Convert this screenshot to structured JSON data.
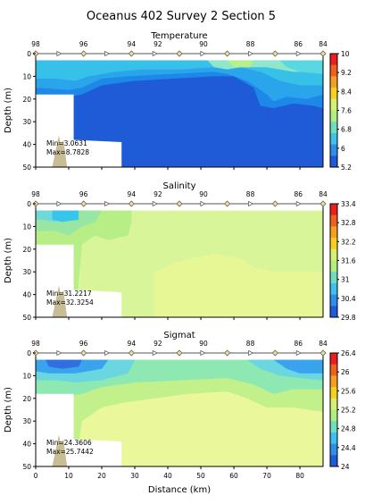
{
  "title": "Oceanus 402 Survey 2 Section 5",
  "xlabel": "Distance (km)",
  "ylabel": "Depth (m)",
  "station_labels": [
    "98",
    "96",
    "94",
    "92",
    "90",
    "88",
    "86",
    "84"
  ],
  "chart_data": [
    {
      "type": "heatmap",
      "title": "Temperature",
      "min_text": "Min=3.0631",
      "max_text": "Max=8.7828",
      "colorbar": {
        "ticks": [
          "10",
          "9.2",
          "8.4",
          "7.6",
          "6.8",
          "6",
          "5.2"
        ],
        "range": [
          5.2,
          10
        ]
      },
      "xlim": [
        0,
        87
      ],
      "ylim": [
        50,
        0
      ],
      "y_ticks": [
        "0",
        "10",
        "20",
        "30",
        "40",
        "50"
      ],
      "regions": [
        {
          "color": "#1f5bd6",
          "points": [
            [
              0,
              3
            ],
            [
              87,
              3
            ],
            [
              87,
              50
            ],
            [
              0,
              50
            ]
          ]
        },
        {
          "color": "#1e88e8",
          "points": [
            [
              0,
              3
            ],
            [
              87,
              3
            ],
            [
              87,
              24
            ],
            [
              84,
              23
            ],
            [
              78,
              22
            ],
            [
              72,
              24
            ],
            [
              68,
              23
            ],
            [
              66,
              15
            ],
            [
              60,
              10
            ],
            [
              54,
              10
            ],
            [
              30,
              12
            ],
            [
              20,
              14
            ],
            [
              14,
              18
            ],
            [
              10,
              19
            ],
            [
              0,
              18
            ]
          ]
        },
        {
          "color": "#2aa5ec",
          "points": [
            [
              0,
              3
            ],
            [
              87,
              3
            ],
            [
              87,
              18
            ],
            [
              82,
              20
            ],
            [
              76,
              19
            ],
            [
              72,
              21
            ],
            [
              70,
              18
            ],
            [
              64,
              12
            ],
            [
              58,
              9
            ],
            [
              54,
              8
            ],
            [
              40,
              9
            ],
            [
              28,
              10
            ],
            [
              20,
              11
            ],
            [
              14,
              15
            ],
            [
              10,
              16
            ],
            [
              0,
              15
            ]
          ]
        },
        {
          "color": "#37c0e8",
          "points": [
            [
              0,
              3
            ],
            [
              87,
              3
            ],
            [
              87,
              14
            ],
            [
              80,
              14
            ],
            [
              74,
              12
            ],
            [
              68,
              8
            ],
            [
              62,
              6
            ],
            [
              54,
              6
            ],
            [
              44,
              7
            ],
            [
              32,
              7
            ],
            [
              24,
              8
            ],
            [
              16,
              10
            ],
            [
              12,
              12
            ],
            [
              6,
              11
            ],
            [
              0,
              11
            ]
          ]
        },
        {
          "color": "#8fe6c8",
          "points": [
            [
              52,
              3
            ],
            [
              87,
              3
            ],
            [
              87,
              8
            ],
            [
              78,
              8
            ],
            [
              70,
              6
            ],
            [
              62,
              6
            ],
            [
              58,
              7
            ],
            [
              54,
              6
            ]
          ]
        },
        {
          "color": "#b6f08a",
          "points": [
            [
              58,
              3
            ],
            [
              66,
              3
            ],
            [
              65,
              6
            ],
            [
              60,
              6
            ]
          ]
        },
        {
          "color": "#5ad8e2",
          "points": [
            [
              74,
              3
            ],
            [
              87,
              3
            ],
            [
              87,
              9
            ],
            [
              80,
              8
            ],
            [
              76,
              6
            ]
          ]
        }
      ]
    },
    {
      "type": "heatmap",
      "title": "Salinity",
      "min_text": "Min=31.2217",
      "max_text": "Max=32.3254",
      "colorbar": {
        "ticks": [
          "33.4",
          "32.8",
          "32.2",
          "31.6",
          "31",
          "30.4",
          "29.8"
        ],
        "range": [
          29.8,
          33.4
        ]
      },
      "xlim": [
        0,
        87
      ],
      "ylim": [
        50,
        0
      ],
      "y_ticks": [
        "0",
        "10",
        "20",
        "30",
        "40",
        "50"
      ],
      "regions": [
        {
          "color": "#d8f59a",
          "points": [
            [
              0,
              3
            ],
            [
              87,
              3
            ],
            [
              87,
              50
            ],
            [
              0,
              50
            ]
          ]
        },
        {
          "color": "#e8f796",
          "points": [
            [
              36,
              50
            ],
            [
              36,
              30
            ],
            [
              42,
              26
            ],
            [
              54,
              22
            ],
            [
              62,
              24
            ],
            [
              66,
              28
            ],
            [
              72,
              30
            ],
            [
              87,
              30
            ],
            [
              87,
              50
            ]
          ]
        },
        {
          "color": "#b8ee86",
          "points": [
            [
              0,
              3
            ],
            [
              29,
              3
            ],
            [
              29,
              8
            ],
            [
              28,
              14
            ],
            [
              22,
              16
            ],
            [
              18,
              14
            ],
            [
              14,
              18
            ],
            [
              12,
              50
            ],
            [
              0,
              50
            ]
          ]
        },
        {
          "color": "#97e6a4",
          "points": [
            [
              0,
              3
            ],
            [
              20,
              3
            ],
            [
              18,
              8
            ],
            [
              14,
              10
            ],
            [
              10,
              14
            ],
            [
              6,
              12
            ],
            [
              0,
              12
            ]
          ]
        },
        {
          "color": "#6fd8d8",
          "points": [
            [
              0,
              3
            ],
            [
              10,
              3
            ],
            [
              9,
              6
            ],
            [
              6,
              8
            ],
            [
              2,
              7
            ],
            [
              0,
              7
            ]
          ]
        },
        {
          "color": "#38c5ec",
          "points": [
            [
              5,
              3
            ],
            [
              13,
              3
            ],
            [
              13,
              7
            ],
            [
              8,
              8
            ],
            [
              5,
              7
            ]
          ]
        }
      ]
    },
    {
      "type": "heatmap",
      "title": "Sigmat",
      "min_text": "Min=24.3606",
      "max_text": "Max=25.7442",
      "colorbar": {
        "ticks": [
          "26.4",
          "26",
          "25.6",
          "25.2",
          "24.8",
          "24.4",
          "24"
        ],
        "range": [
          24,
          26.4
        ]
      },
      "xlim": [
        0,
        87
      ],
      "ylim": [
        50,
        0
      ],
      "y_ticks": [
        "0",
        "10",
        "20",
        "30",
        "40",
        "50"
      ],
      "regions": [
        {
          "color": "#eaf79a",
          "points": [
            [
              0,
              3
            ],
            [
              87,
              3
            ],
            [
              87,
              50
            ],
            [
              0,
              50
            ]
          ]
        },
        {
          "color": "#c2f08a",
          "points": [
            [
              0,
              3
            ],
            [
              87,
              3
            ],
            [
              87,
              26
            ],
            [
              78,
              24
            ],
            [
              70,
              24
            ],
            [
              64,
              20
            ],
            [
              58,
              17
            ],
            [
              46,
              18
            ],
            [
              36,
              20
            ],
            [
              26,
              22
            ],
            [
              20,
              24
            ],
            [
              14,
              30
            ],
            [
              12,
              50
            ],
            [
              0,
              50
            ]
          ]
        },
        {
          "color": "#8ee8b2",
          "points": [
            [
              0,
              3
            ],
            [
              87,
              3
            ],
            [
              87,
              16
            ],
            [
              78,
              16
            ],
            [
              72,
              18
            ],
            [
              66,
              14
            ],
            [
              58,
              11
            ],
            [
              44,
              12
            ],
            [
              30,
              13
            ],
            [
              20,
              15
            ],
            [
              14,
              18
            ],
            [
              10,
              19
            ],
            [
              0,
              19
            ]
          ]
        },
        {
          "color": "#6ad6e0",
          "points": [
            [
              0,
              3
            ],
            [
              30,
              3
            ],
            [
              28,
              9
            ],
            [
              20,
              12
            ],
            [
              12,
              13
            ],
            [
              6,
              12
            ],
            [
              0,
              12
            ]
          ]
        },
        {
          "color": "#6ad6e0",
          "points": [
            [
              64,
              3
            ],
            [
              87,
              3
            ],
            [
              87,
              12
            ],
            [
              80,
              11
            ],
            [
              74,
              10
            ],
            [
              68,
              7
            ]
          ]
        },
        {
          "color": "#3aa3ee",
          "points": [
            [
              0,
              3
            ],
            [
              22,
              3
            ],
            [
              20,
              7
            ],
            [
              12,
              9
            ],
            [
              4,
              9
            ],
            [
              0,
              8
            ]
          ]
        },
        {
          "color": "#3aa3ee",
          "points": [
            [
              72,
              3
            ],
            [
              87,
              3
            ],
            [
              87,
              9
            ],
            [
              80,
              9
            ],
            [
              76,
              7
            ]
          ]
        },
        {
          "color": "#2f6fe0",
          "points": [
            [
              3,
              3
            ],
            [
              14,
              3
            ],
            [
              13,
              6
            ],
            [
              8,
              7
            ],
            [
              4,
              6
            ]
          ]
        }
      ]
    }
  ]
}
